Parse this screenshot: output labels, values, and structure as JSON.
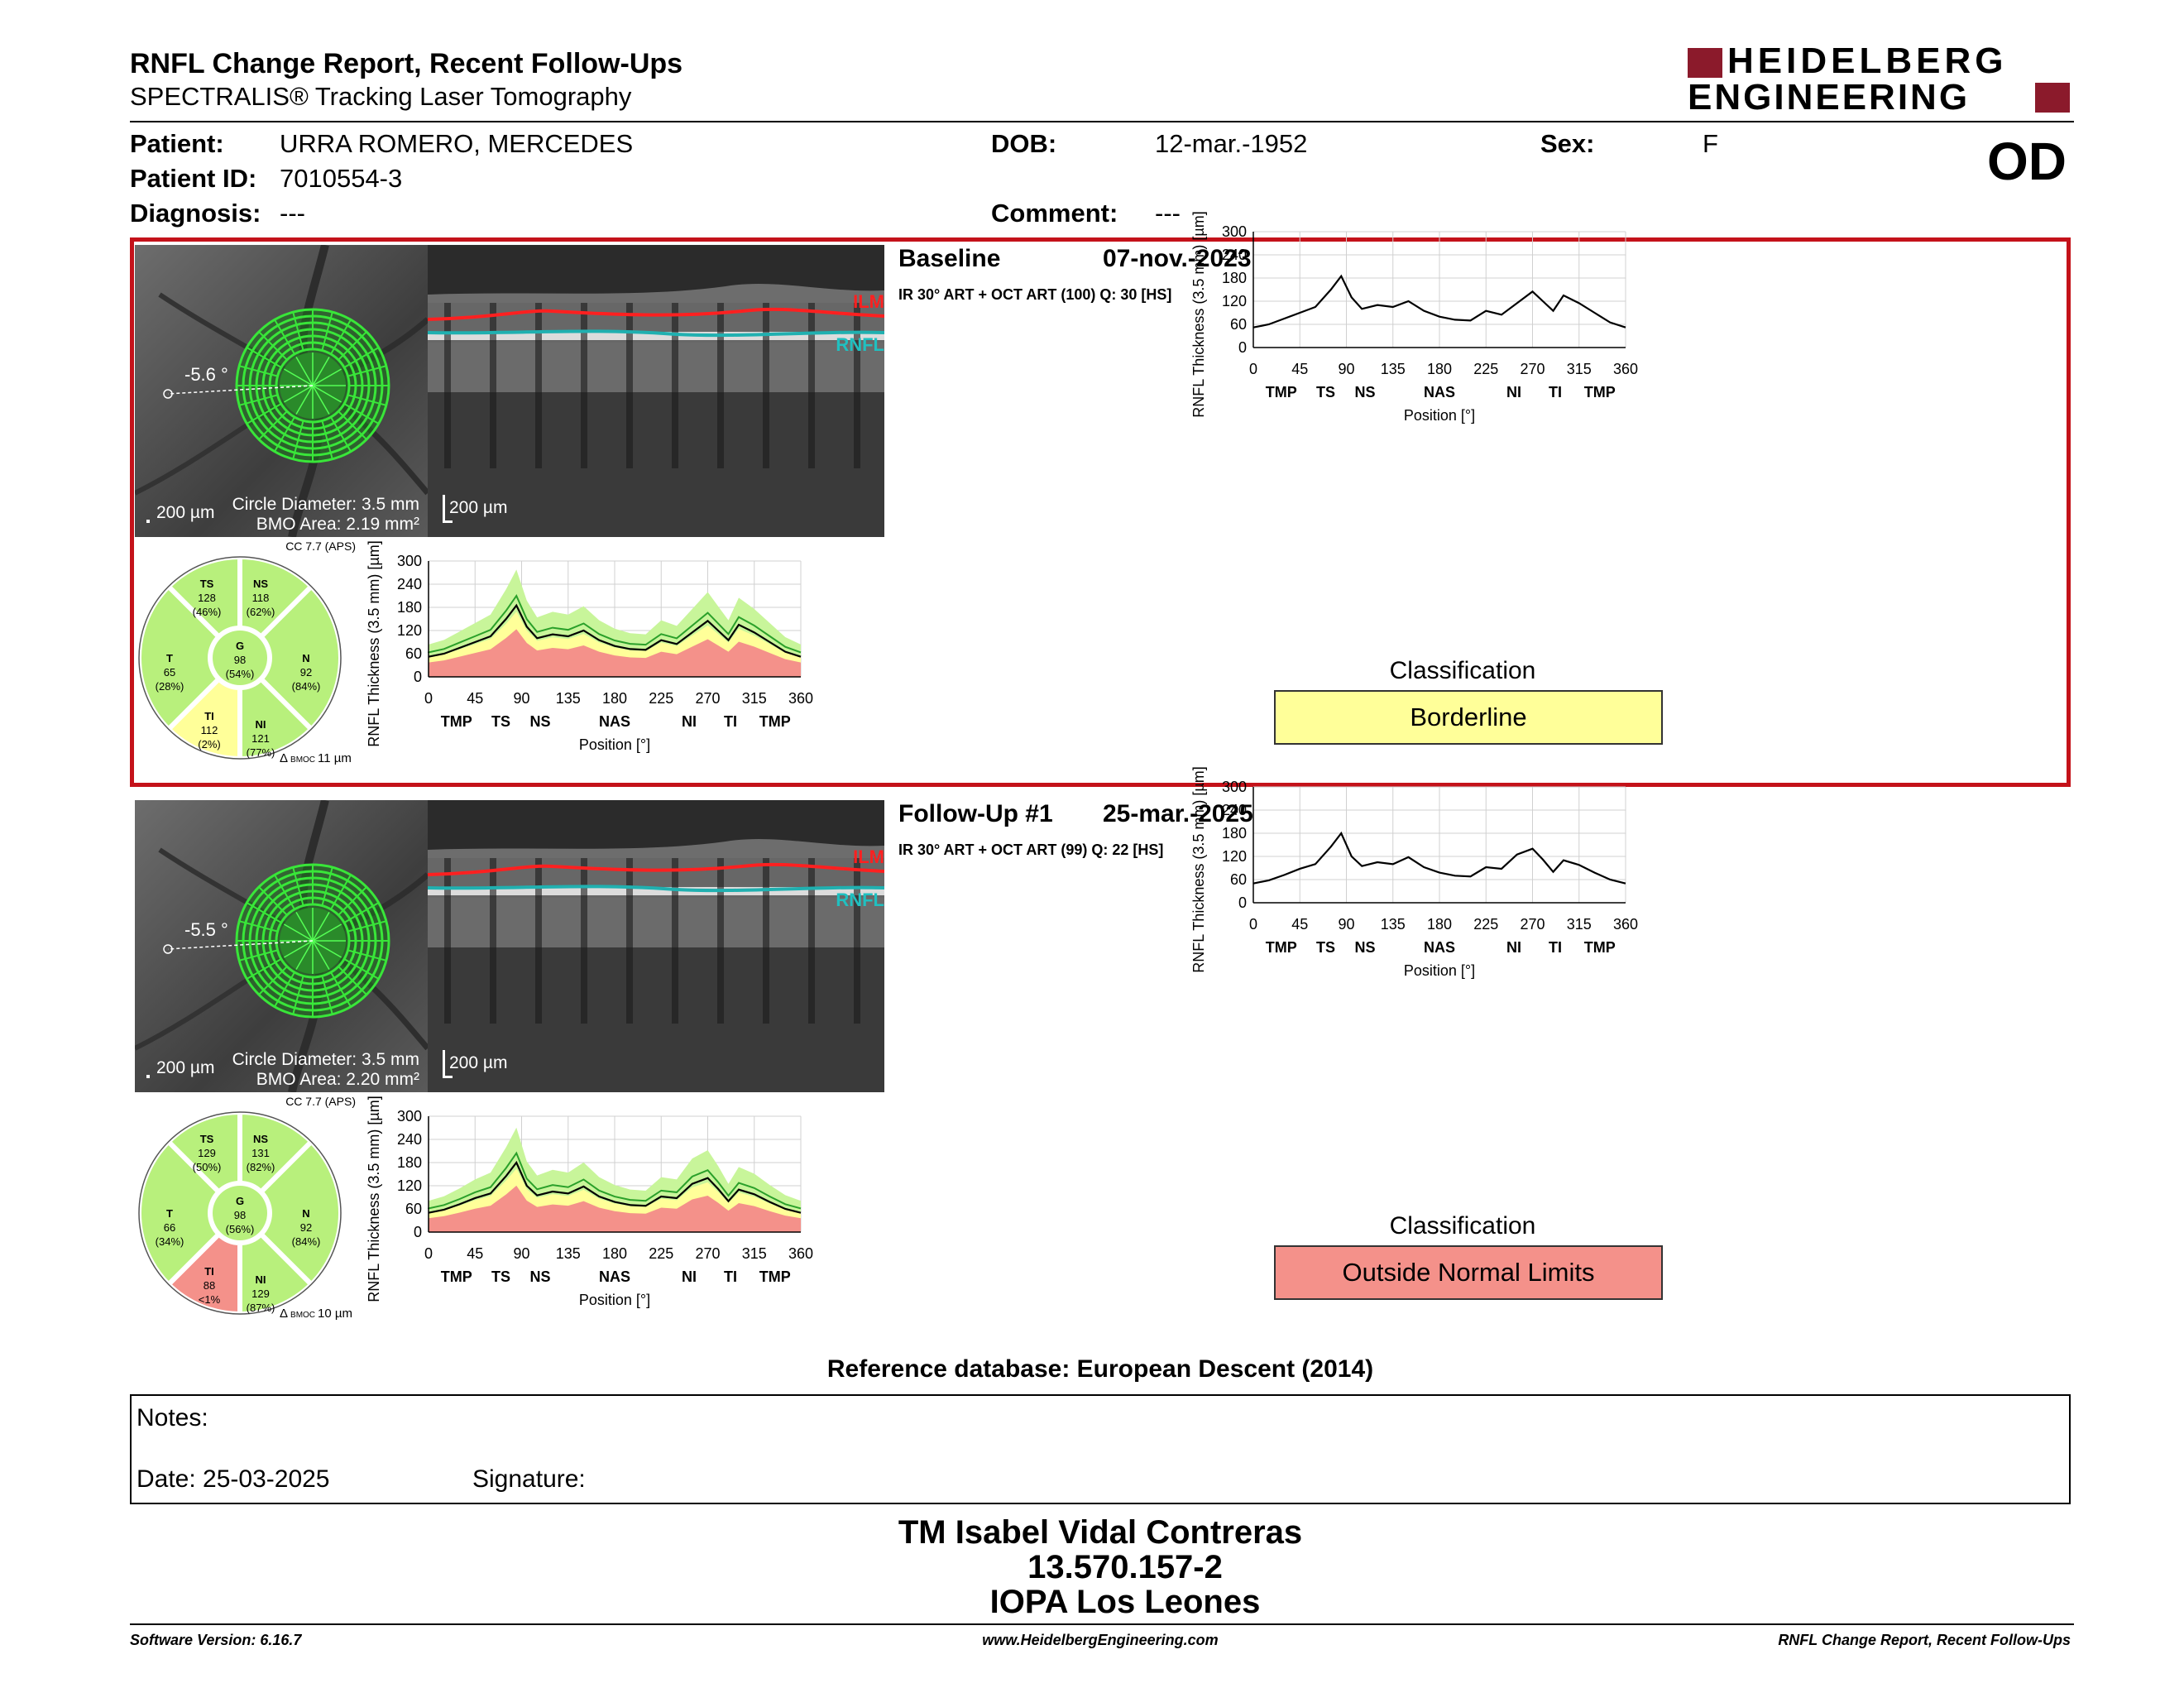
{
  "header": {
    "title": "RNFL Change Report, Recent Follow-Ups",
    "subtitle": "SPECTRALIS® Tracking Laser Tomography",
    "logo_line1": "HEIDELBERG",
    "logo_line2": "ENGINEERING",
    "brand_color": "#8b1a2b"
  },
  "patient": {
    "patient_label": "Patient:",
    "patient_value": "URRA ROMERO, MERCEDES",
    "id_label": "Patient ID:",
    "id_value": "7010554-3",
    "diagnosis_label": "Diagnosis:",
    "diagnosis_value": "---",
    "dob_label": "DOB:",
    "dob_value": "12-mar.-1952",
    "comment_label": "Comment:",
    "comment_value": "---",
    "sex_label": "Sex:",
    "sex_value": "F",
    "eye": "OD"
  },
  "exams": [
    {
      "label": "Baseline",
      "date": "07-nov.-2023",
      "scan_info": "IR 30° ART + OCT ART (100) Q: 30 [HS]",
      "angle": "-5.6 °",
      "scale_fundus": "200 µm",
      "circle_diameter": "Circle Diameter: 3.5 mm",
      "bmo_area": "BMO Area: 2.19 mm²",
      "scale_oct": "200 µm",
      "ilm": "ILM",
      "rnfl": "RNFL",
      "cc": "CC 7.7 (APS)",
      "bmoc_prefix": "Δ",
      "bmoc_sub": "BMOC",
      "bmoc_value": "11 µm",
      "sectors": {
        "TS": {
          "name": "TS",
          "value": "128",
          "pct": "(46%)",
          "status": "green"
        },
        "NS": {
          "name": "NS",
          "value": "118",
          "pct": "(62%)",
          "status": "green"
        },
        "T": {
          "name": "T",
          "value": "65",
          "pct": "(28%)",
          "status": "green"
        },
        "G": {
          "name": "G",
          "value": "98",
          "pct": "(54%)",
          "status": "green"
        },
        "N": {
          "name": "N",
          "value": "92",
          "pct": "(84%)",
          "status": "green"
        },
        "TI": {
          "name": "TI",
          "value": "112",
          "pct": "(2%)",
          "status": "yellow"
        },
        "NI": {
          "name": "NI",
          "value": "121",
          "pct": "(77%)",
          "status": "green"
        }
      },
      "classification_label": "Classification",
      "classification": "Borderline",
      "classification_color": "#ffff99"
    },
    {
      "label": "Follow-Up #1",
      "date": "25-mar.-2025",
      "scan_info": "IR 30° ART + OCT ART (99) Q: 22 [HS]",
      "angle": "-5.5 °",
      "scale_fundus": "200 µm",
      "circle_diameter": "Circle Diameter: 3.5 mm",
      "bmo_area": "BMO Area: 2.20 mm²",
      "scale_oct": "200 µm",
      "ilm": "ILM",
      "rnfl": "RNFL",
      "cc": "CC 7.7 (APS)",
      "bmoc_prefix": "Δ",
      "bmoc_sub": "BMOC",
      "bmoc_value": "10 µm",
      "sectors": {
        "TS": {
          "name": "TS",
          "value": "129",
          "pct": "(50%)",
          "status": "green"
        },
        "NS": {
          "name": "NS",
          "value": "131",
          "pct": "(82%)",
          "status": "green"
        },
        "T": {
          "name": "T",
          "value": "66",
          "pct": "(34%)",
          "status": "green"
        },
        "G": {
          "name": "G",
          "value": "98",
          "pct": "(56%)",
          "status": "green"
        },
        "N": {
          "name": "N",
          "value": "92",
          "pct": "(84%)",
          "status": "green"
        },
        "TI": {
          "name": "TI",
          "value": "88",
          "pct": "<1%",
          "status": "red"
        },
        "NI": {
          "name": "NI",
          "value": "129",
          "pct": "(87%)",
          "status": "green"
        }
      },
      "classification_label": "Classification",
      "classification": "Outside Normal Limits",
      "classification_color": "#f4918a"
    }
  ],
  "chart_data": [
    {
      "type": "line",
      "name": "Baseline RNFL thickness profile",
      "ylabel": "RNFL Thickness (3.5 mm) [µm]",
      "xlabel": "Position [°]",
      "x_ticks": [
        "0",
        "45",
        "90",
        "135",
        "180",
        "225",
        "270",
        "315",
        "360"
      ],
      "y_ticks": [
        "0",
        "60",
        "120",
        "180",
        "240",
        "300"
      ],
      "sector_labels": [
        "TMP",
        "TS",
        "NS",
        "NAS",
        "NI",
        "TI",
        "TMP"
      ],
      "xlim": [
        0,
        360
      ],
      "ylim": [
        0,
        300
      ],
      "series": [
        {
          "x": [
            0,
            15,
            30,
            45,
            60,
            75,
            85,
            95,
            105,
            120,
            135,
            150,
            165,
            180,
            195,
            210,
            225,
            240,
            255,
            270,
            280,
            290,
            300,
            315,
            330,
            345,
            360
          ],
          "values": [
            52,
            60,
            75,
            90,
            105,
            150,
            185,
            130,
            100,
            110,
            105,
            120,
            95,
            80,
            72,
            70,
            95,
            85,
            115,
            145,
            120,
            95,
            135,
            115,
            90,
            65,
            52
          ]
        }
      ],
      "normative_bands": true
    },
    {
      "type": "line",
      "name": "Follow-Up #1 RNFL thickness profile",
      "ylabel": "RNFL Thickness (3.5 mm) [µm]",
      "xlabel": "Position [°]",
      "x_ticks": [
        "0",
        "45",
        "90",
        "135",
        "180",
        "225",
        "270",
        "315",
        "360"
      ],
      "y_ticks": [
        "0",
        "60",
        "120",
        "180",
        "240",
        "300"
      ],
      "sector_labels": [
        "TMP",
        "TS",
        "NS",
        "NAS",
        "NI",
        "TI",
        "TMP"
      ],
      "xlim": [
        0,
        360
      ],
      "ylim": [
        0,
        300
      ],
      "series": [
        {
          "x": [
            0,
            15,
            30,
            45,
            60,
            75,
            85,
            95,
            105,
            120,
            135,
            150,
            165,
            180,
            195,
            210,
            225,
            240,
            255,
            270,
            280,
            290,
            300,
            315,
            330,
            345,
            360
          ],
          "values": [
            50,
            58,
            72,
            88,
            100,
            145,
            180,
            120,
            95,
            105,
            100,
            118,
            92,
            78,
            70,
            68,
            92,
            88,
            125,
            140,
            112,
            80,
            110,
            98,
            78,
            60,
            50
          ]
        }
      ],
      "normative_bands": true
    }
  ],
  "reference_db": "Reference database: European Descent (2014)",
  "notes": {
    "notes_label": "Notes:",
    "date_label": "Date: 25-03-2025",
    "signature_label": "Signature:"
  },
  "signatory": {
    "name": "TM Isabel Vidal Contreras",
    "rut": "13.570.157-2",
    "center": "IOPA Los Leones"
  },
  "footer": {
    "software": "Software Version: 6.16.7",
    "url": "www.HeidelbergEngineering.com",
    "report": "RNFL Change Report, Recent Follow-Ups"
  }
}
